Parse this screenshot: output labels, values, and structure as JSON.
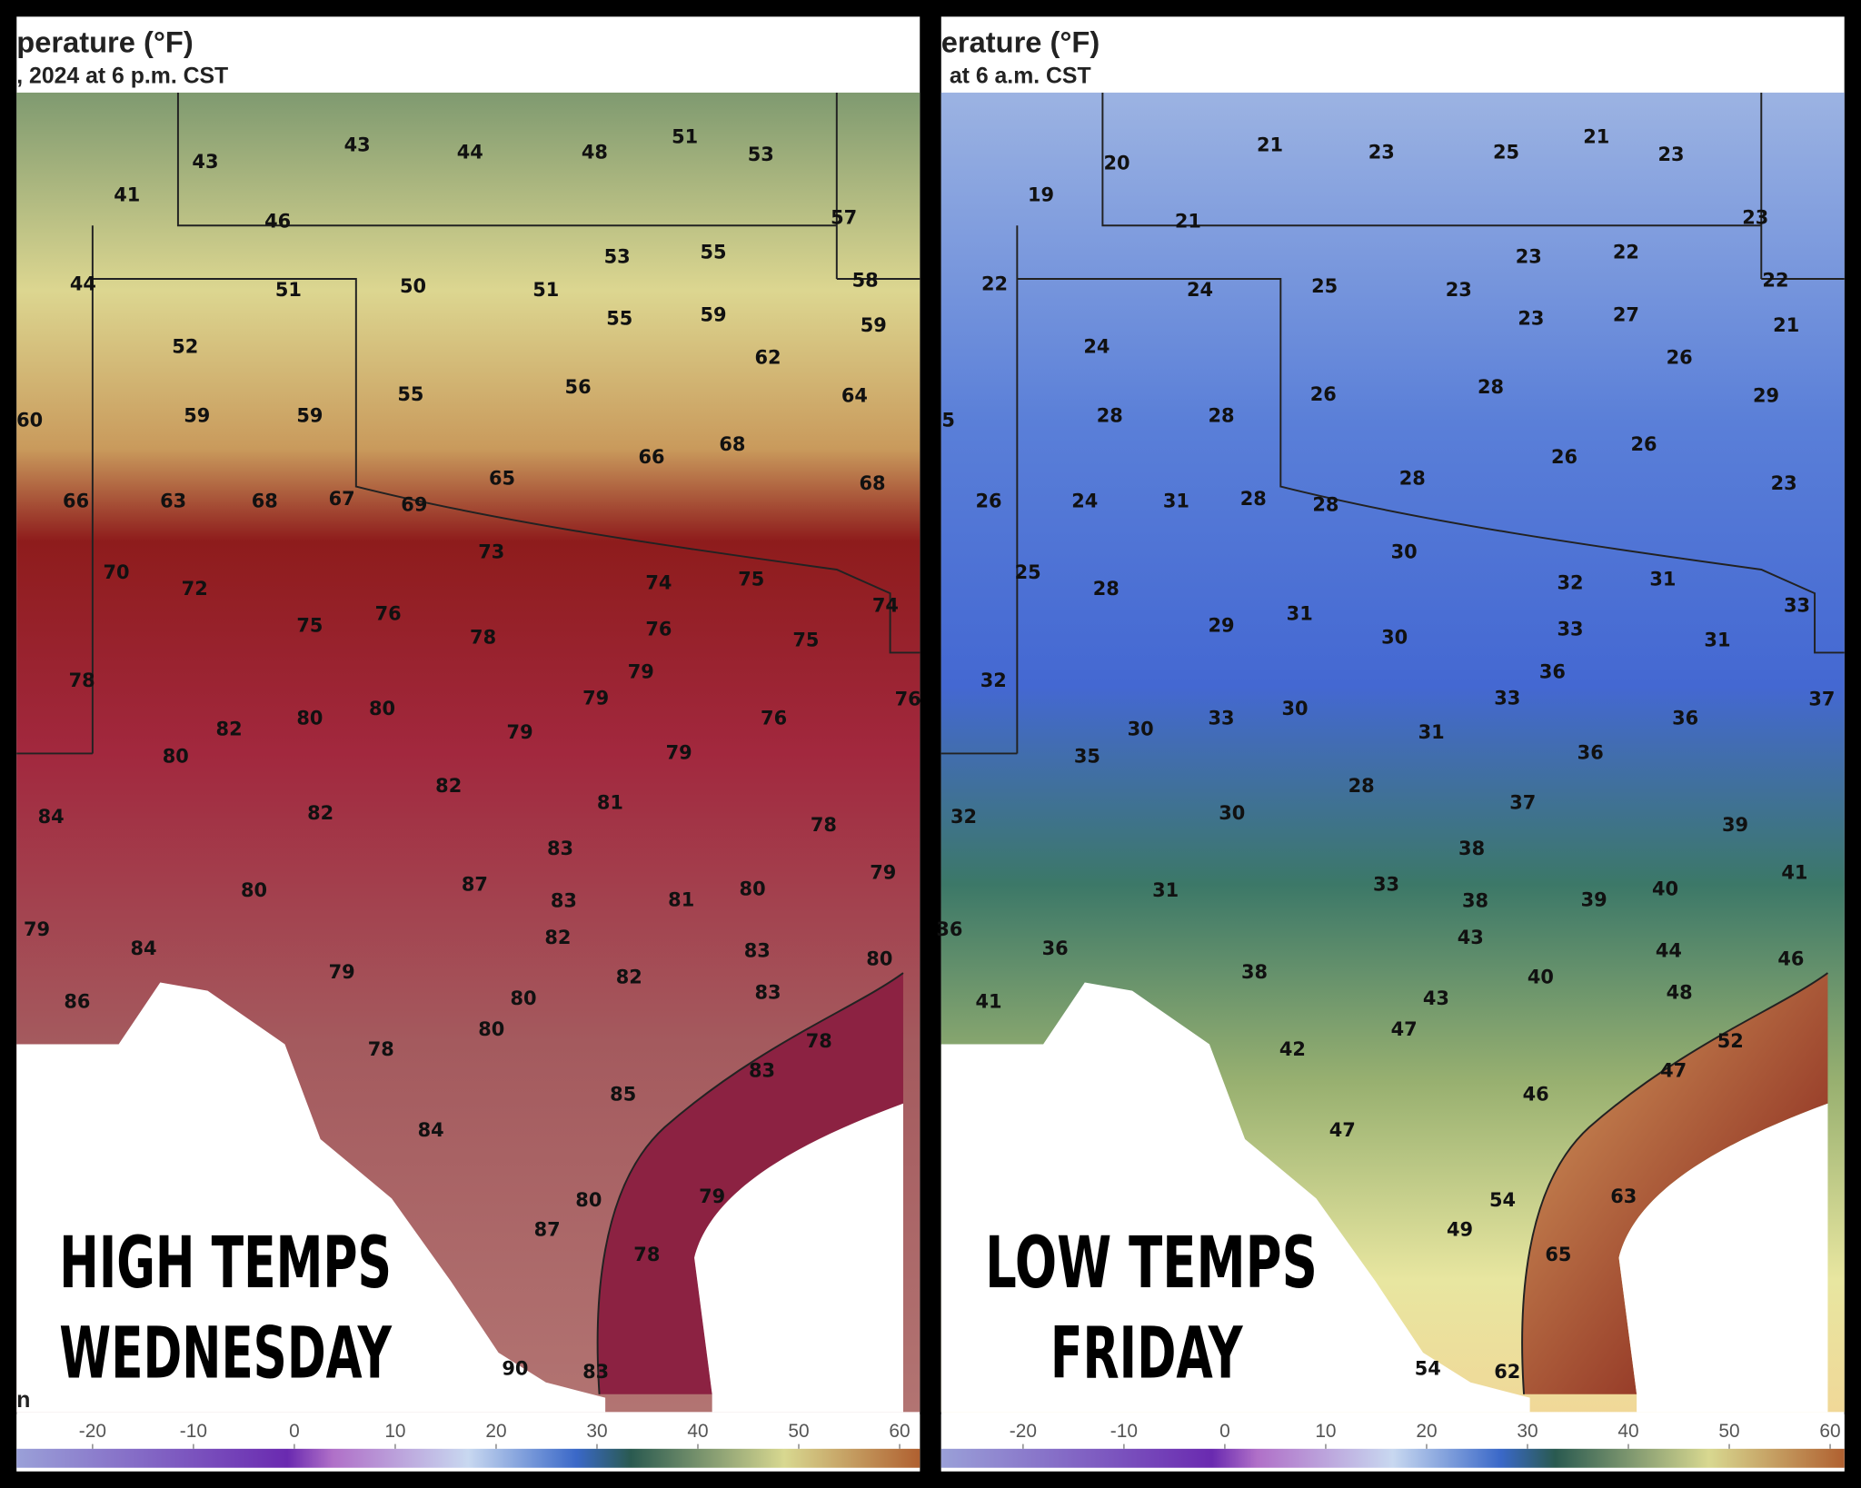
{
  "panels": [
    {
      "title": "perature (°F)",
      "subtitle": ", 2024 at 6 p.m. CST",
      "caption": [
        "HIGH TEMPS",
        "WEDNESDAY"
      ],
      "corner_text": "n",
      "labels": [
        43,
        43,
        44,
        48,
        51,
        53,
        41,
        46,
        57,
        44,
        51,
        50,
        51,
        53,
        55,
        58,
        52,
        55,
        59,
        59,
        62,
        60,
        59,
        59,
        55,
        56,
        64,
        66,
        68,
        65,
        68,
        66,
        63,
        68,
        67,
        69,
        73,
        74,
        75,
        70,
        72,
        74,
        75,
        76,
        78,
        76,
        75,
        79,
        78,
        79,
        82,
        80,
        80,
        79,
        76,
        76,
        80,
        79,
        82,
        81,
        84,
        82,
        78,
        83,
        87,
        80,
        83,
        81,
        80,
        79,
        79,
        84,
        82,
        83,
        80,
        79,
        82,
        86,
        80,
        83,
        80,
        78,
        78,
        83,
        85,
        84,
        80,
        79,
        87,
        78,
        90,
        83
      ],
      "colorbar_ticks": [
        -20,
        -10,
        0,
        10,
        20,
        30,
        40,
        50,
        60
      ]
    },
    {
      "title": "erature (°F)",
      "subtitle": "at 6 a.m. CST",
      "caption": [
        "LOW TEMPS",
        "FRIDAY"
      ],
      "labels": [
        20,
        21,
        23,
        25,
        21,
        23,
        19,
        21,
        23,
        22,
        24,
        25,
        23,
        23,
        22,
        22,
        24,
        23,
        27,
        21,
        26,
        5,
        28,
        28,
        26,
        28,
        29,
        26,
        26,
        28,
        23,
        26,
        24,
        31,
        28,
        28,
        30,
        32,
        31,
        25,
        28,
        33,
        29,
        31,
        30,
        33,
        31,
        36,
        32,
        33,
        30,
        33,
        30,
        31,
        36,
        37,
        35,
        36,
        28,
        37,
        32,
        30,
        39,
        38,
        33,
        31,
        38,
        39,
        40,
        41,
        36,
        36,
        43,
        44,
        46,
        38,
        40,
        41,
        43,
        48,
        47,
        42,
        52,
        47,
        46,
        47,
        54,
        63,
        49,
        65,
        54,
        62
      ],
      "colorbar_ticks": [
        -20,
        -10,
        0,
        10,
        20,
        30,
        40,
        50,
        60
      ]
    }
  ]
}
